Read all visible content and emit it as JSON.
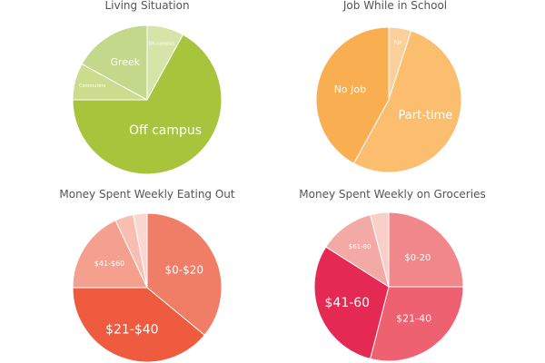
{
  "chart_data": [
    {
      "type": "pie",
      "title": "Living Situation",
      "slices": [
        {
          "label": "On-campus",
          "value": 8,
          "color": "#d6e4a8"
        },
        {
          "label": "Off campus",
          "value": 67,
          "color": "#a8c33c"
        },
        {
          "label": "Commuters",
          "value": 8,
          "color": "#cbdc8e"
        },
        {
          "label": "Greek",
          "value": 17,
          "color": "#c3d88a"
        }
      ]
    },
    {
      "type": "pie",
      "title": "Job While in School",
      "slices": [
        {
          "label": "Full",
          "value": 5,
          "color": "#fcd09b"
        },
        {
          "label": "Part-time",
          "value": 53,
          "color": "#fbbd6e"
        },
        {
          "label": "No Job",
          "value": 42,
          "color": "#f9ae52"
        }
      ]
    },
    {
      "type": "pie",
      "title": "Money Spent Weekly Eating Out",
      "slices": [
        {
          "label": "$0-$20",
          "value": 36,
          "color": "#f07d66"
        },
        {
          "label": "$21-$40",
          "value": 39,
          "color": "#ef5b3f"
        },
        {
          "label": "$41-$60",
          "value": 18,
          "color": "#f5a08e"
        },
        {
          "label": "",
          "value": 4,
          "color": "#f8beb2"
        },
        {
          "label": "",
          "value": 3,
          "color": "#fbd8cf"
        }
      ]
    },
    {
      "type": "pie",
      "title": "Money Spent Weekly on Groceries",
      "slices": [
        {
          "label": "$0-20",
          "value": 25,
          "color": "#f2878b"
        },
        {
          "label": "$21-40",
          "value": 29,
          "color": "#ee6170"
        },
        {
          "label": "$41-60",
          "value": 30,
          "color": "#e42953"
        },
        {
          "label": "$61-80",
          "value": 12,
          "color": "#f3a9a6"
        },
        {
          "label": "",
          "value": 4,
          "color": "#f8cfc9"
        }
      ]
    }
  ]
}
